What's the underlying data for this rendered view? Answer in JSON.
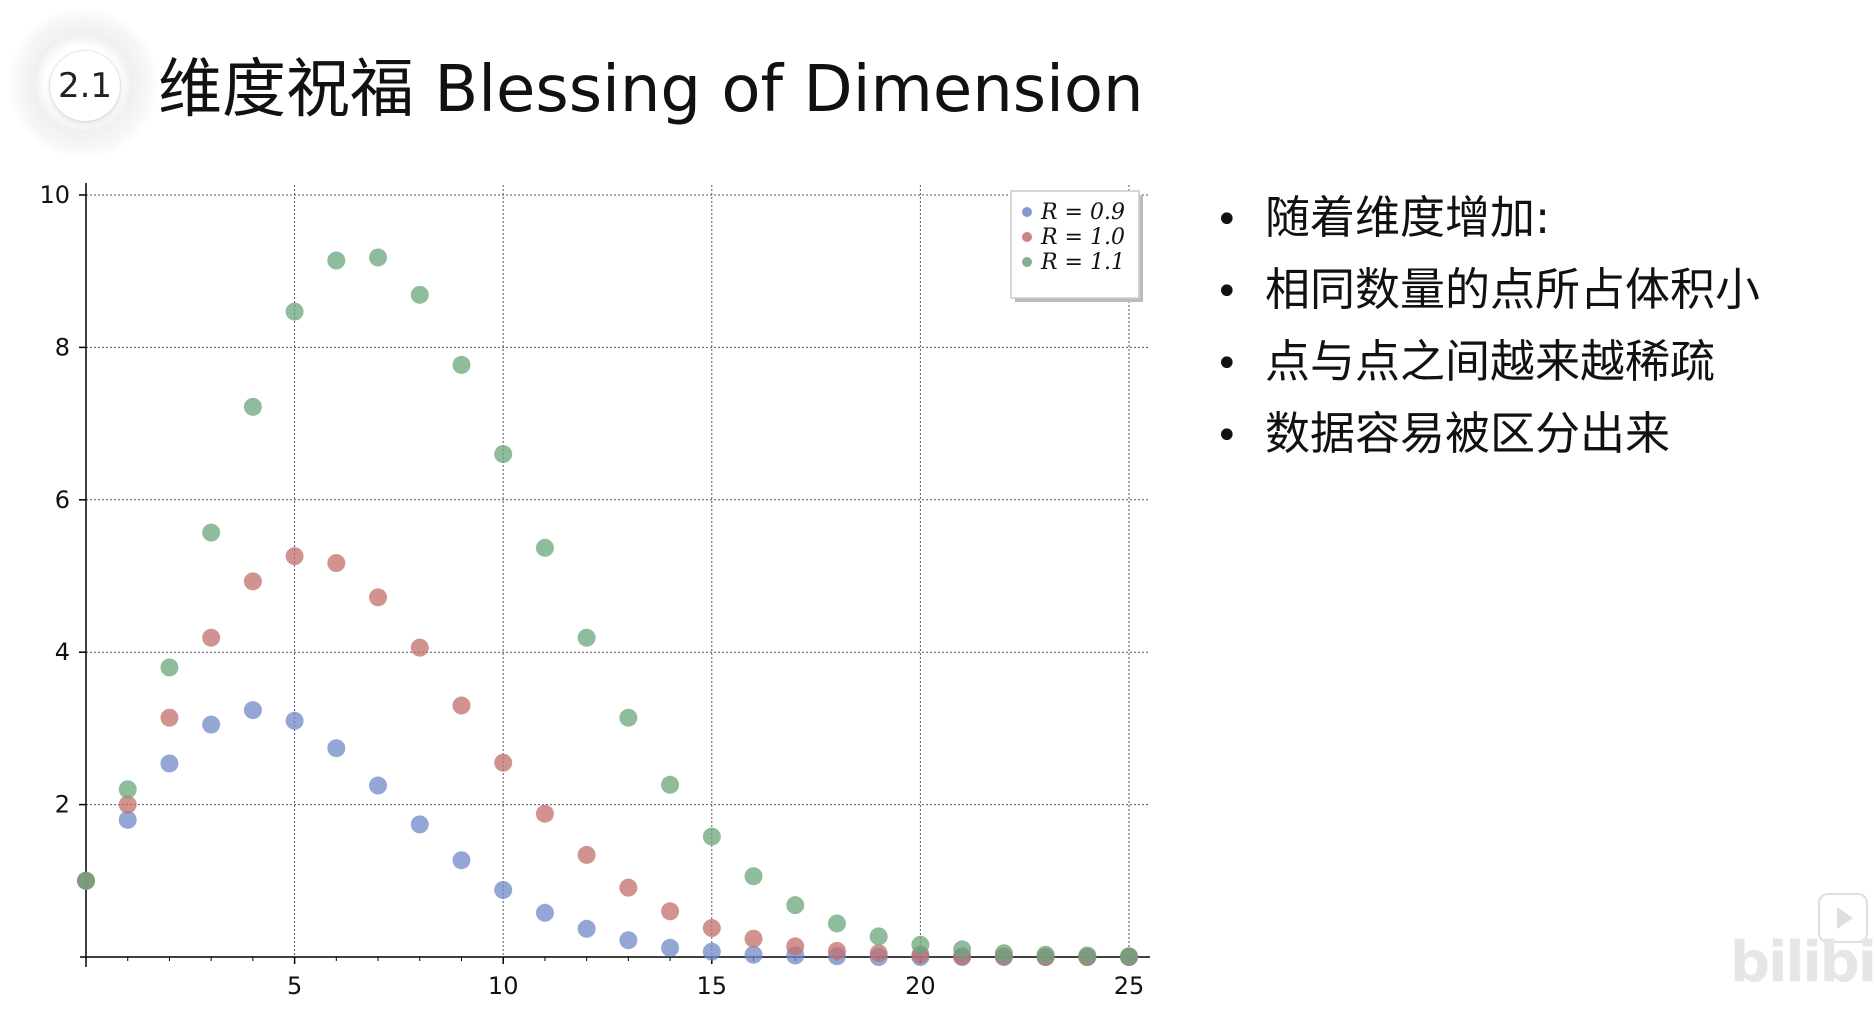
{
  "slide": {
    "section_number": "2.1",
    "title": "维度祝福 Blessing of Dimension"
  },
  "bullets": [
    "随着维度增加:",
    "相同数量的点所占体积小",
    "点与点之间越来越稀疏",
    "数据容易被区分出来"
  ],
  "watermark": {
    "logo_text": "bilibili"
  },
  "chart_data": {
    "type": "scatter",
    "title": "",
    "xlabel": "",
    "ylabel": "",
    "xlim": [
      0,
      25
    ],
    "ylim": [
      0,
      10
    ],
    "xticks": [
      5,
      10,
      15,
      20,
      25
    ],
    "yticks": [
      2,
      4,
      6,
      8,
      10
    ],
    "grid": true,
    "grid_style": "dotted",
    "legend_position": "top-right",
    "x": [
      0,
      1,
      2,
      3,
      4,
      5,
      6,
      7,
      8,
      9,
      10,
      11,
      12,
      13,
      14,
      15,
      16,
      17,
      18,
      19,
      20,
      21,
      22,
      23,
      24,
      25
    ],
    "series": [
      {
        "name": "R = 0.9",
        "color": "#6f88c8",
        "values": [
          1.0,
          1.8,
          2.54,
          3.05,
          3.24,
          3.1,
          2.74,
          2.25,
          1.74,
          1.27,
          0.88,
          0.58,
          0.37,
          0.22,
          0.12,
          0.07,
          0.03,
          0.02,
          0.01,
          0.0,
          0.0,
          0.0,
          0.0,
          0.0,
          0.0,
          0.0
        ]
      },
      {
        "name": "R = 1.0",
        "color": "#c26f6b",
        "values": [
          1.0,
          2.0,
          3.14,
          4.19,
          4.93,
          5.26,
          5.17,
          4.72,
          4.06,
          3.3,
          2.55,
          1.88,
          1.34,
          0.91,
          0.6,
          0.38,
          0.24,
          0.14,
          0.08,
          0.05,
          0.03,
          0.01,
          0.01,
          0.0,
          0.0,
          0.0
        ]
      },
      {
        "name": "R = 1.1",
        "color": "#6aa57a",
        "values": [
          1.0,
          2.2,
          3.8,
          5.57,
          7.22,
          8.47,
          9.14,
          9.18,
          8.69,
          7.77,
          6.6,
          5.37,
          4.19,
          3.14,
          2.26,
          1.58,
          1.06,
          0.68,
          0.44,
          0.27,
          0.16,
          0.1,
          0.05,
          0.03,
          0.02,
          0.01
        ]
      }
    ]
  }
}
